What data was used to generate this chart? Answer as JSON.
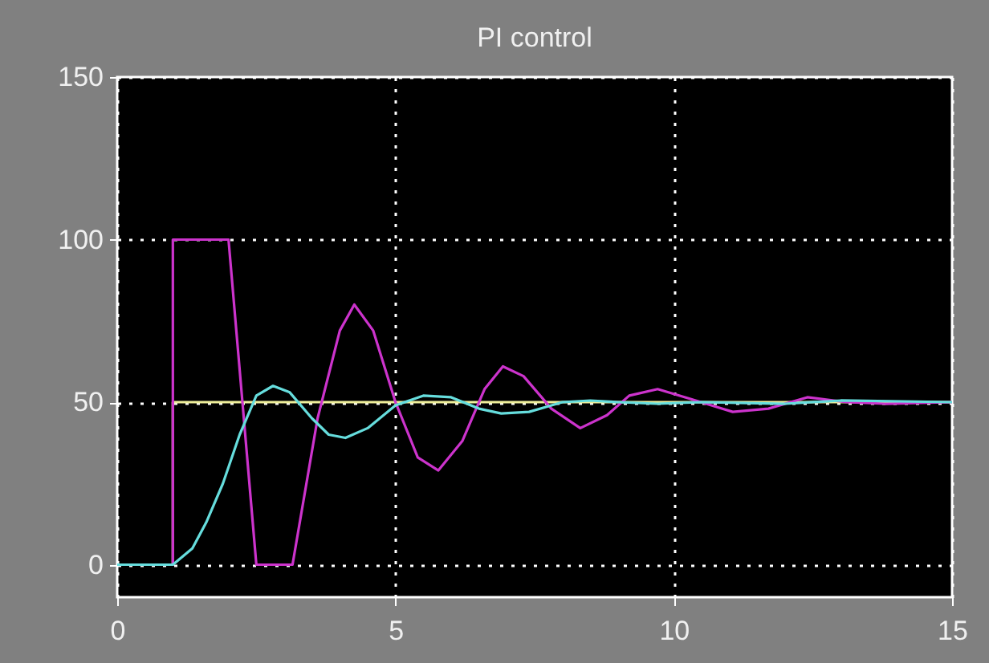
{
  "chart_data": {
    "type": "line",
    "title": "PI control",
    "xlim": [
      0,
      15
    ],
    "xticks": [
      0,
      5,
      10,
      15
    ],
    "ylim": [
      -10,
      150
    ],
    "yticks": [
      0,
      50,
      100,
      150
    ],
    "grid": true,
    "line_style": "solid",
    "series": [
      {
        "color": "#eeee99",
        "x": [
          0,
          1,
          1,
          15
        ],
        "values": [
          0,
          0,
          50,
          50
        ]
      },
      {
        "color": "#cc33cc",
        "x": [
          0,
          1,
          1,
          2,
          2.5,
          3.15,
          3.6,
          4,
          4.26,
          4.6,
          5,
          5.4,
          5.77,
          6.2,
          6.6,
          6.93,
          7.3,
          7.8,
          8.32,
          8.8,
          9.2,
          9.71,
          10.3,
          11.06,
          11.7,
          12.4,
          13.1,
          13.8,
          15
        ],
        "values": [
          0,
          0,
          100,
          100,
          0,
          0,
          45,
          72,
          80,
          72,
          50,
          33,
          29,
          38,
          54,
          61,
          58,
          48,
          42,
          46,
          52,
          54,
          51,
          47,
          48,
          51.5,
          50,
          49.5,
          50
        ]
      },
      {
        "color": "#66dddd",
        "x": [
          0,
          1,
          1.35,
          1.6,
          1.9,
          2.2,
          2.5,
          2.8,
          3.1,
          3.5,
          3.8,
          4.1,
          4.5,
          5,
          5.5,
          6,
          6.5,
          6.9,
          7.4,
          8,
          8.5,
          9,
          9.7,
          10.5,
          12,
          13,
          15
        ],
        "values": [
          0,
          0,
          5,
          13,
          25,
          40,
          52,
          55,
          53,
          45,
          40,
          39,
          42,
          49,
          52,
          51.5,
          48,
          46.5,
          47,
          50,
          50.5,
          50,
          49.5,
          50,
          49.5,
          50.5,
          50
        ]
      }
    ]
  }
}
